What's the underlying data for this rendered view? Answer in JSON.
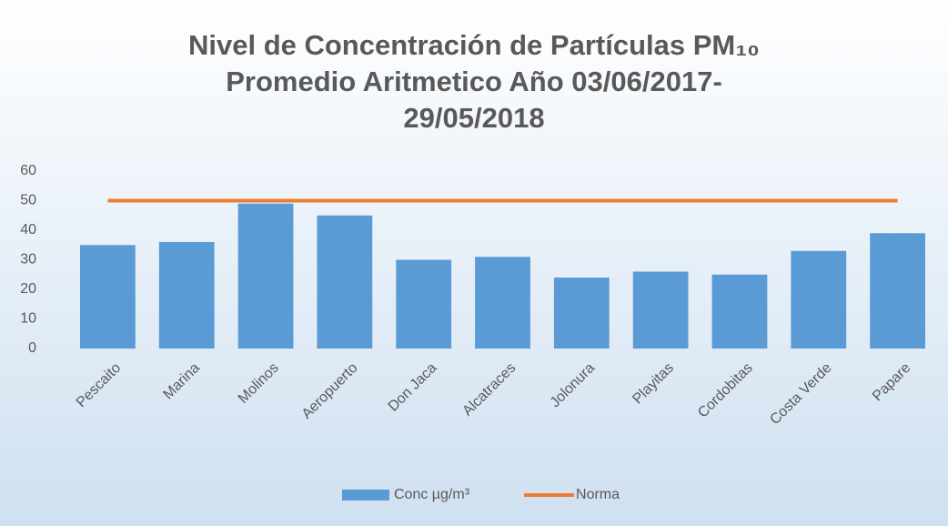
{
  "chart_data": {
    "type": "bar",
    "title": "Nivel de Concentración de Partículas PM₁₀ Promedio Aritmetico Año 03/06/2017-29/05/2018",
    "categories": [
      "Pescaito",
      "Marina",
      "Molinos",
      "Aeropuerto",
      "Don Jaca",
      "Alcatraces",
      "Jolonura",
      "Playitas",
      "Cordobitas",
      "Costa Verde",
      "Papare"
    ],
    "series": [
      {
        "name": "Conc µg/m³",
        "type": "bar",
        "color": "#5b9bd5",
        "values": [
          35,
          36,
          49,
          45,
          30,
          31,
          24,
          26,
          25,
          33,
          39
        ]
      },
      {
        "name": "Norma",
        "type": "line",
        "color": "#ed7d31",
        "values": [
          50,
          50,
          50,
          50,
          50,
          50,
          50,
          50,
          50,
          50,
          50
        ]
      }
    ],
    "ylim": [
      0,
      60
    ],
    "yticks": [
      0,
      10,
      20,
      30,
      40,
      50,
      60
    ],
    "grid": false,
    "legend": "bottom"
  }
}
